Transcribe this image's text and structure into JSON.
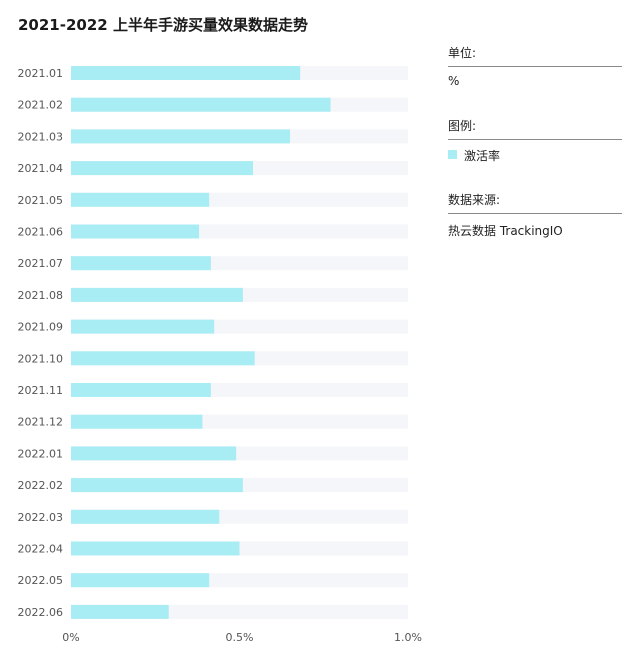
{
  "title": "2021-2022 上半年手游买量效果数据走势",
  "colors": {
    "bar": "#a8ecf4",
    "track": "#f5f6f9",
    "tick_text": "#555555"
  },
  "chart_data": {
    "type": "bar",
    "orientation": "horizontal",
    "categories": [
      "2021.01",
      "2021.02",
      "2021.03",
      "2021.04",
      "2021.05",
      "2021.06",
      "2021.07",
      "2021.08",
      "2021.09",
      "2021.10",
      "2021.11",
      "2021.12",
      "2022.01",
      "2022.02",
      "2022.03",
      "2022.04",
      "2022.05",
      "2022.06"
    ],
    "series": [
      {
        "name": "激活率",
        "values": [
          0.68,
          0.77,
          0.65,
          0.54,
          0.41,
          0.38,
          0.415,
          0.51,
          0.425,
          0.545,
          0.415,
          0.39,
          0.49,
          0.51,
          0.44,
          0.5,
          0.41,
          0.29
        ]
      }
    ],
    "xlim": [
      0,
      1.0
    ],
    "x_ticks": [
      "0%",
      "0.5%",
      "1.0%"
    ],
    "x_tick_values": [
      0,
      0.5,
      1.0
    ],
    "grid": false
  },
  "sidebar": {
    "unit_label": "单位:",
    "unit_value": "%",
    "legend_label": "图例:",
    "legend_items": [
      {
        "label": "激活率",
        "color": "#a8ecf4"
      }
    ],
    "source_label": "数据来源:",
    "source_value": "热云数据 TrackingIO"
  }
}
